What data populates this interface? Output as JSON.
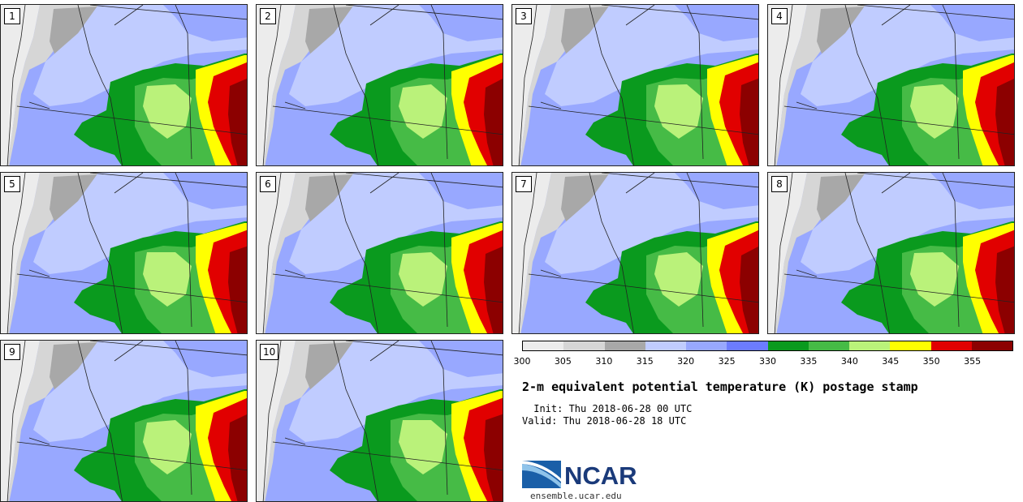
{
  "title": "2-m equivalent potential temperature (K) postage stamp",
  "init_line": " Init: Thu 2018-06-28 00 UTC",
  "valid_line": "Valid: Thu 2018-06-28 18 UTC",
  "logo": {
    "text": "NCAR",
    "url": "ensemble.ucar.edu"
  },
  "members": [
    "1",
    "2",
    "3",
    "4",
    "5",
    "6",
    "7",
    "8",
    "9",
    "10"
  ],
  "colorbar": {
    "colors": [
      "#ececec",
      "#d6d6d6",
      "#a8a8a8",
      "#c0ccff",
      "#98a8ff",
      "#6c7cff",
      "#0a9a1e",
      "#46bb46",
      "#baf27a",
      "#ffff00",
      "#e10000",
      "#8c0000"
    ],
    "tick_labels": [
      "300",
      "305",
      "310",
      "315",
      "320",
      "325",
      "330",
      "335",
      "340",
      "345",
      "350",
      "355"
    ]
  }
}
